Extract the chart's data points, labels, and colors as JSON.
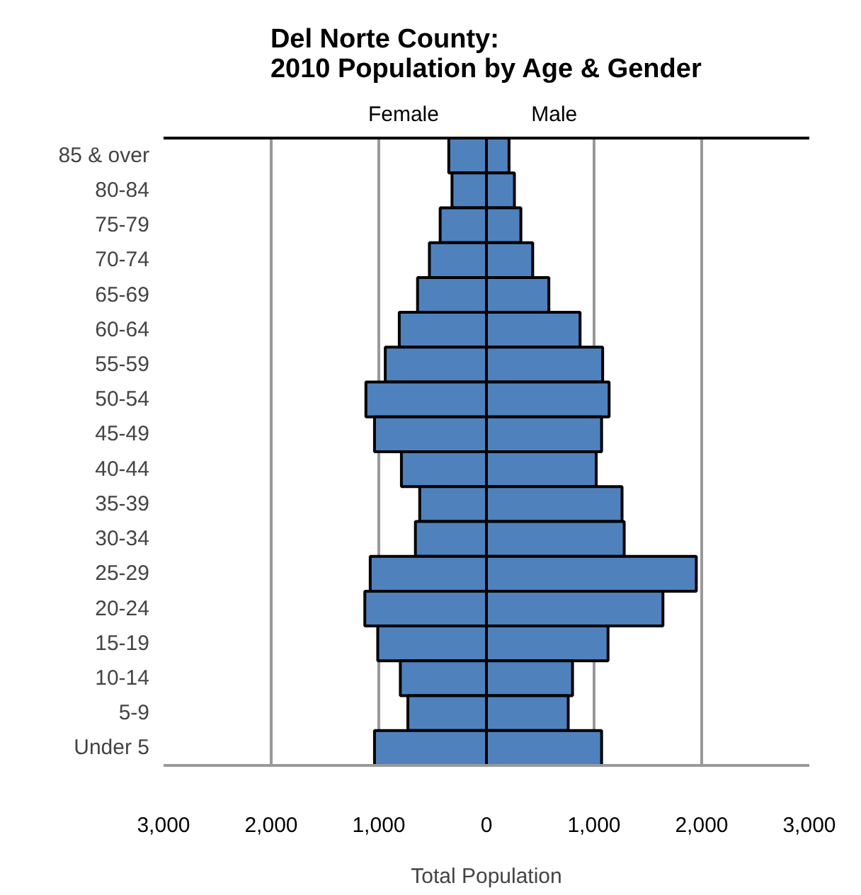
{
  "chart_data": {
    "type": "bar",
    "orientation": "horizontal",
    "title": "Del Norte County:\n2010 Population by Age & Gender",
    "xlabel": "Total Population",
    "categories": [
      "85 & over",
      "80-84",
      "75-79",
      "70-74",
      "65-69",
      "60-64",
      "55-59",
      "50-54",
      "45-49",
      "40-44",
      "35-39",
      "30-34",
      "25-29",
      "20-24",
      "15-19",
      "10-14",
      "5-9",
      "Under 5"
    ],
    "series": [
      {
        "name": "Female",
        "color": "#4f81bd",
        "values": [
          -350,
          -320,
          -430,
          -530,
          -640,
          -810,
          -940,
          -1120,
          -1040,
          -790,
          -620,
          -660,
          -1080,
          -1130,
          -1010,
          -800,
          -730,
          -1040
        ]
      },
      {
        "name": "Male",
        "color": "#4f81bd",
        "values": [
          210,
          260,
          320,
          430,
          580,
          870,
          1080,
          1140,
          1070,
          1020,
          1260,
          1280,
          1950,
          1640,
          1130,
          800,
          760,
          1070
        ]
      }
    ],
    "xlim": [
      -3000,
      3000
    ],
    "xticks": [
      {
        "value": -3000,
        "label": "3,000"
      },
      {
        "value": -2000,
        "label": "2,000"
      },
      {
        "value": -1000,
        "label": "1,000"
      },
      0,
      {
        "value": 1000,
        "label": "1,000"
      },
      {
        "value": 2000,
        "label": "2,000"
      },
      {
        "value": 3000,
        "label": "3,000"
      }
    ],
    "stacked": true,
    "grid": "x"
  }
}
